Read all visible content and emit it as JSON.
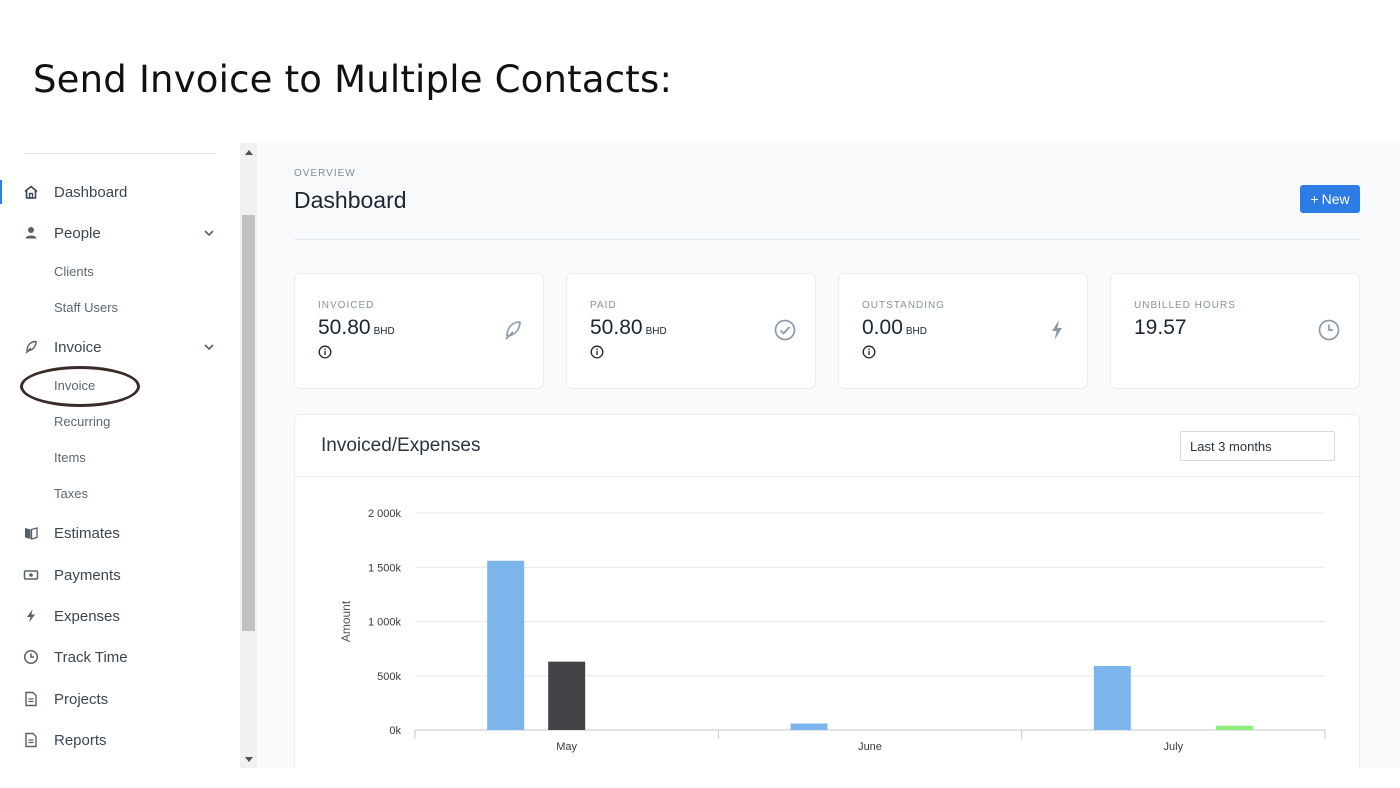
{
  "slide_title": "Send Invoice to Multiple Contacts:",
  "sidebar": {
    "items": [
      {
        "label": "Dashboard",
        "icon": "home-icon"
      },
      {
        "label": "People",
        "icon": "person-icon"
      },
      {
        "label": "Invoice",
        "icon": "feather-icon"
      },
      {
        "label": "Estimates",
        "icon": "book-icon"
      },
      {
        "label": "Payments",
        "icon": "money-icon"
      },
      {
        "label": "Expenses",
        "icon": "bolt-icon"
      },
      {
        "label": "Track Time",
        "icon": "clock-icon"
      },
      {
        "label": "Projects",
        "icon": "document-icon"
      },
      {
        "label": "Reports",
        "icon": "report-icon"
      }
    ],
    "people_sub": [
      "Clients",
      "Staff Users"
    ],
    "invoice_sub": [
      "Invoice",
      "Recurring",
      "Items",
      "Taxes"
    ]
  },
  "header": {
    "overview": "OVERVIEW",
    "title": "Dashboard",
    "new_button": "New"
  },
  "stats": [
    {
      "label": "INVOICED",
      "value": "50.80",
      "unit": "BHD",
      "icon": "feather-icon",
      "has_info": true
    },
    {
      "label": "PAID",
      "value": "50.80",
      "unit": "BHD",
      "icon": "check-circle-icon",
      "has_info": true
    },
    {
      "label": "OUTSTANDING",
      "value": "0.00",
      "unit": "BHD",
      "icon": "bolt-icon",
      "has_info": true
    },
    {
      "label": "UNBILLED HOURS",
      "value": "19.57",
      "unit": "",
      "icon": "clock-icon",
      "has_info": false
    }
  ],
  "chart_panel": {
    "title": "Invoiced/Expenses",
    "range": "Last 3 months"
  },
  "chart_data": {
    "type": "bar",
    "categories": [
      "May",
      "June",
      "July"
    ],
    "series": [
      {
        "values": [
          1560,
          60,
          590
        ],
        "color": "#7cb5ec"
      },
      {
        "values": [
          630,
          0,
          0
        ],
        "color": "#434348"
      },
      {
        "values": [
          0,
          0,
          40
        ],
        "color": "#90ed7d"
      }
    ],
    "ylabel": "Amount",
    "ylim": [
      0,
      2000
    ],
    "yticks": [
      0,
      500,
      1000,
      1500,
      2000
    ],
    "ytick_labels": [
      "0k",
      "500k",
      "1 000k",
      "1 500k",
      "2 000k"
    ],
    "grid": true
  },
  "colors": {
    "accent": "#2d7be5",
    "annotation": "#3b2b28"
  }
}
